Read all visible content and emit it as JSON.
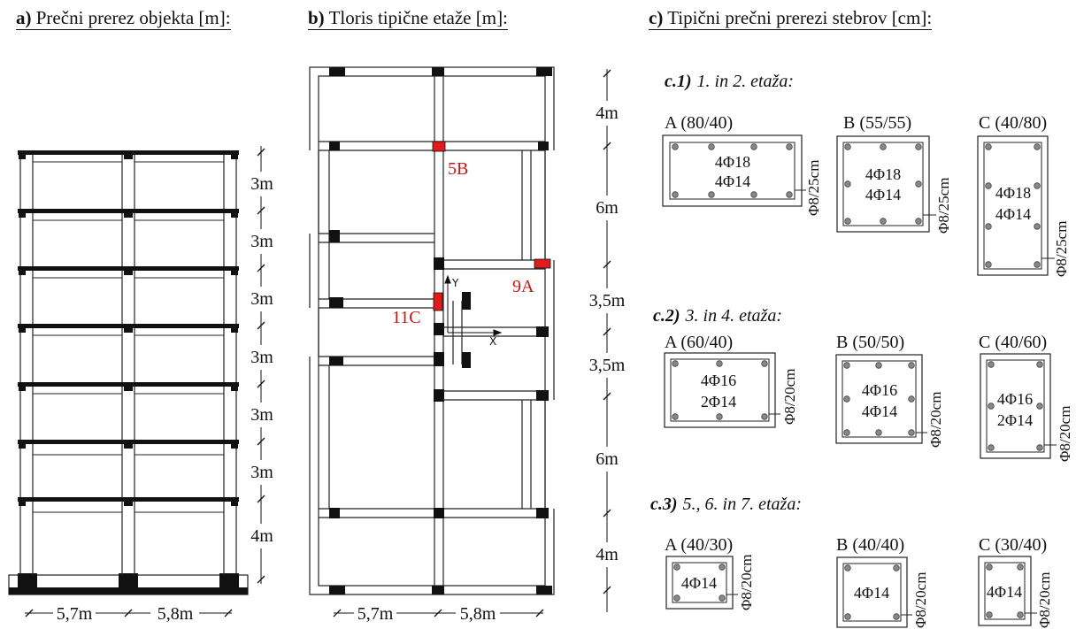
{
  "headers": {
    "a_letter": "a)",
    "a_text": "Prečni prerez objekta [m]:",
    "b_letter": "b)",
    "b_text": "Tloris tipične etaže [m]:",
    "c_letter": "c)",
    "c_text": "Tipični prečni prerezi stebrov [cm]:"
  },
  "section_a": {
    "storey_heights": [
      "3m",
      "3m",
      "3m",
      "3m",
      "3m",
      "3m",
      "4m"
    ],
    "bay_widths": [
      "5,7m",
      "5,8m"
    ]
  },
  "section_b": {
    "column_labels": [
      "5B",
      "9A",
      "11C"
    ],
    "axis_y": "Y",
    "axis_x": "X",
    "dims": [
      "4m",
      "6m",
      "3,5m",
      "3,5m",
      "6m",
      "4m"
    ],
    "bay_widths": [
      "5,7m",
      "5,8m"
    ]
  },
  "section_c": {
    "groups": [
      {
        "num": "c.1)",
        "title": "1. in 2. etaža:",
        "cols": [
          {
            "name": "A (80/40)",
            "bars1": "4Φ18",
            "bars2": "4Φ14",
            "stirrup": "Φ8/25cm"
          },
          {
            "name": "B (55/55)",
            "bars1": "4Φ18",
            "bars2": "4Φ14",
            "stirrup": "Φ8/25cm"
          },
          {
            "name": "C (40/80)",
            "bars1": "4Φ18",
            "bars2": "4Φ14",
            "stirrup": "Φ8/25cm"
          }
        ]
      },
      {
        "num": "c.2)",
        "title": "3. in 4. etaža:",
        "cols": [
          {
            "name": "A (60/40)",
            "bars1": "4Φ16",
            "bars2": "2Φ14",
            "stirrup": "Φ8/20cm"
          },
          {
            "name": "B (50/50)",
            "bars1": "4Φ16",
            "bars2": "4Φ14",
            "stirrup": "Φ8/20cm"
          },
          {
            "name": "C (40/60)",
            "bars1": "4Φ16",
            "bars2": "2Φ14",
            "stirrup": "Φ8/20cm"
          }
        ]
      },
      {
        "num": "c.3)",
        "title": "5., 6. in 7. etaža:",
        "cols": [
          {
            "name": "A (40/30)",
            "bars1": "4Φ14",
            "stirrup": "Φ8/20cm"
          },
          {
            "name": "B (40/40)",
            "bars1": "4Φ14",
            "stirrup": "Φ8/20cm"
          },
          {
            "name": "C (30/40)",
            "bars1": "4Φ14",
            "stirrup": "Φ8/20cm"
          }
        ]
      }
    ]
  }
}
